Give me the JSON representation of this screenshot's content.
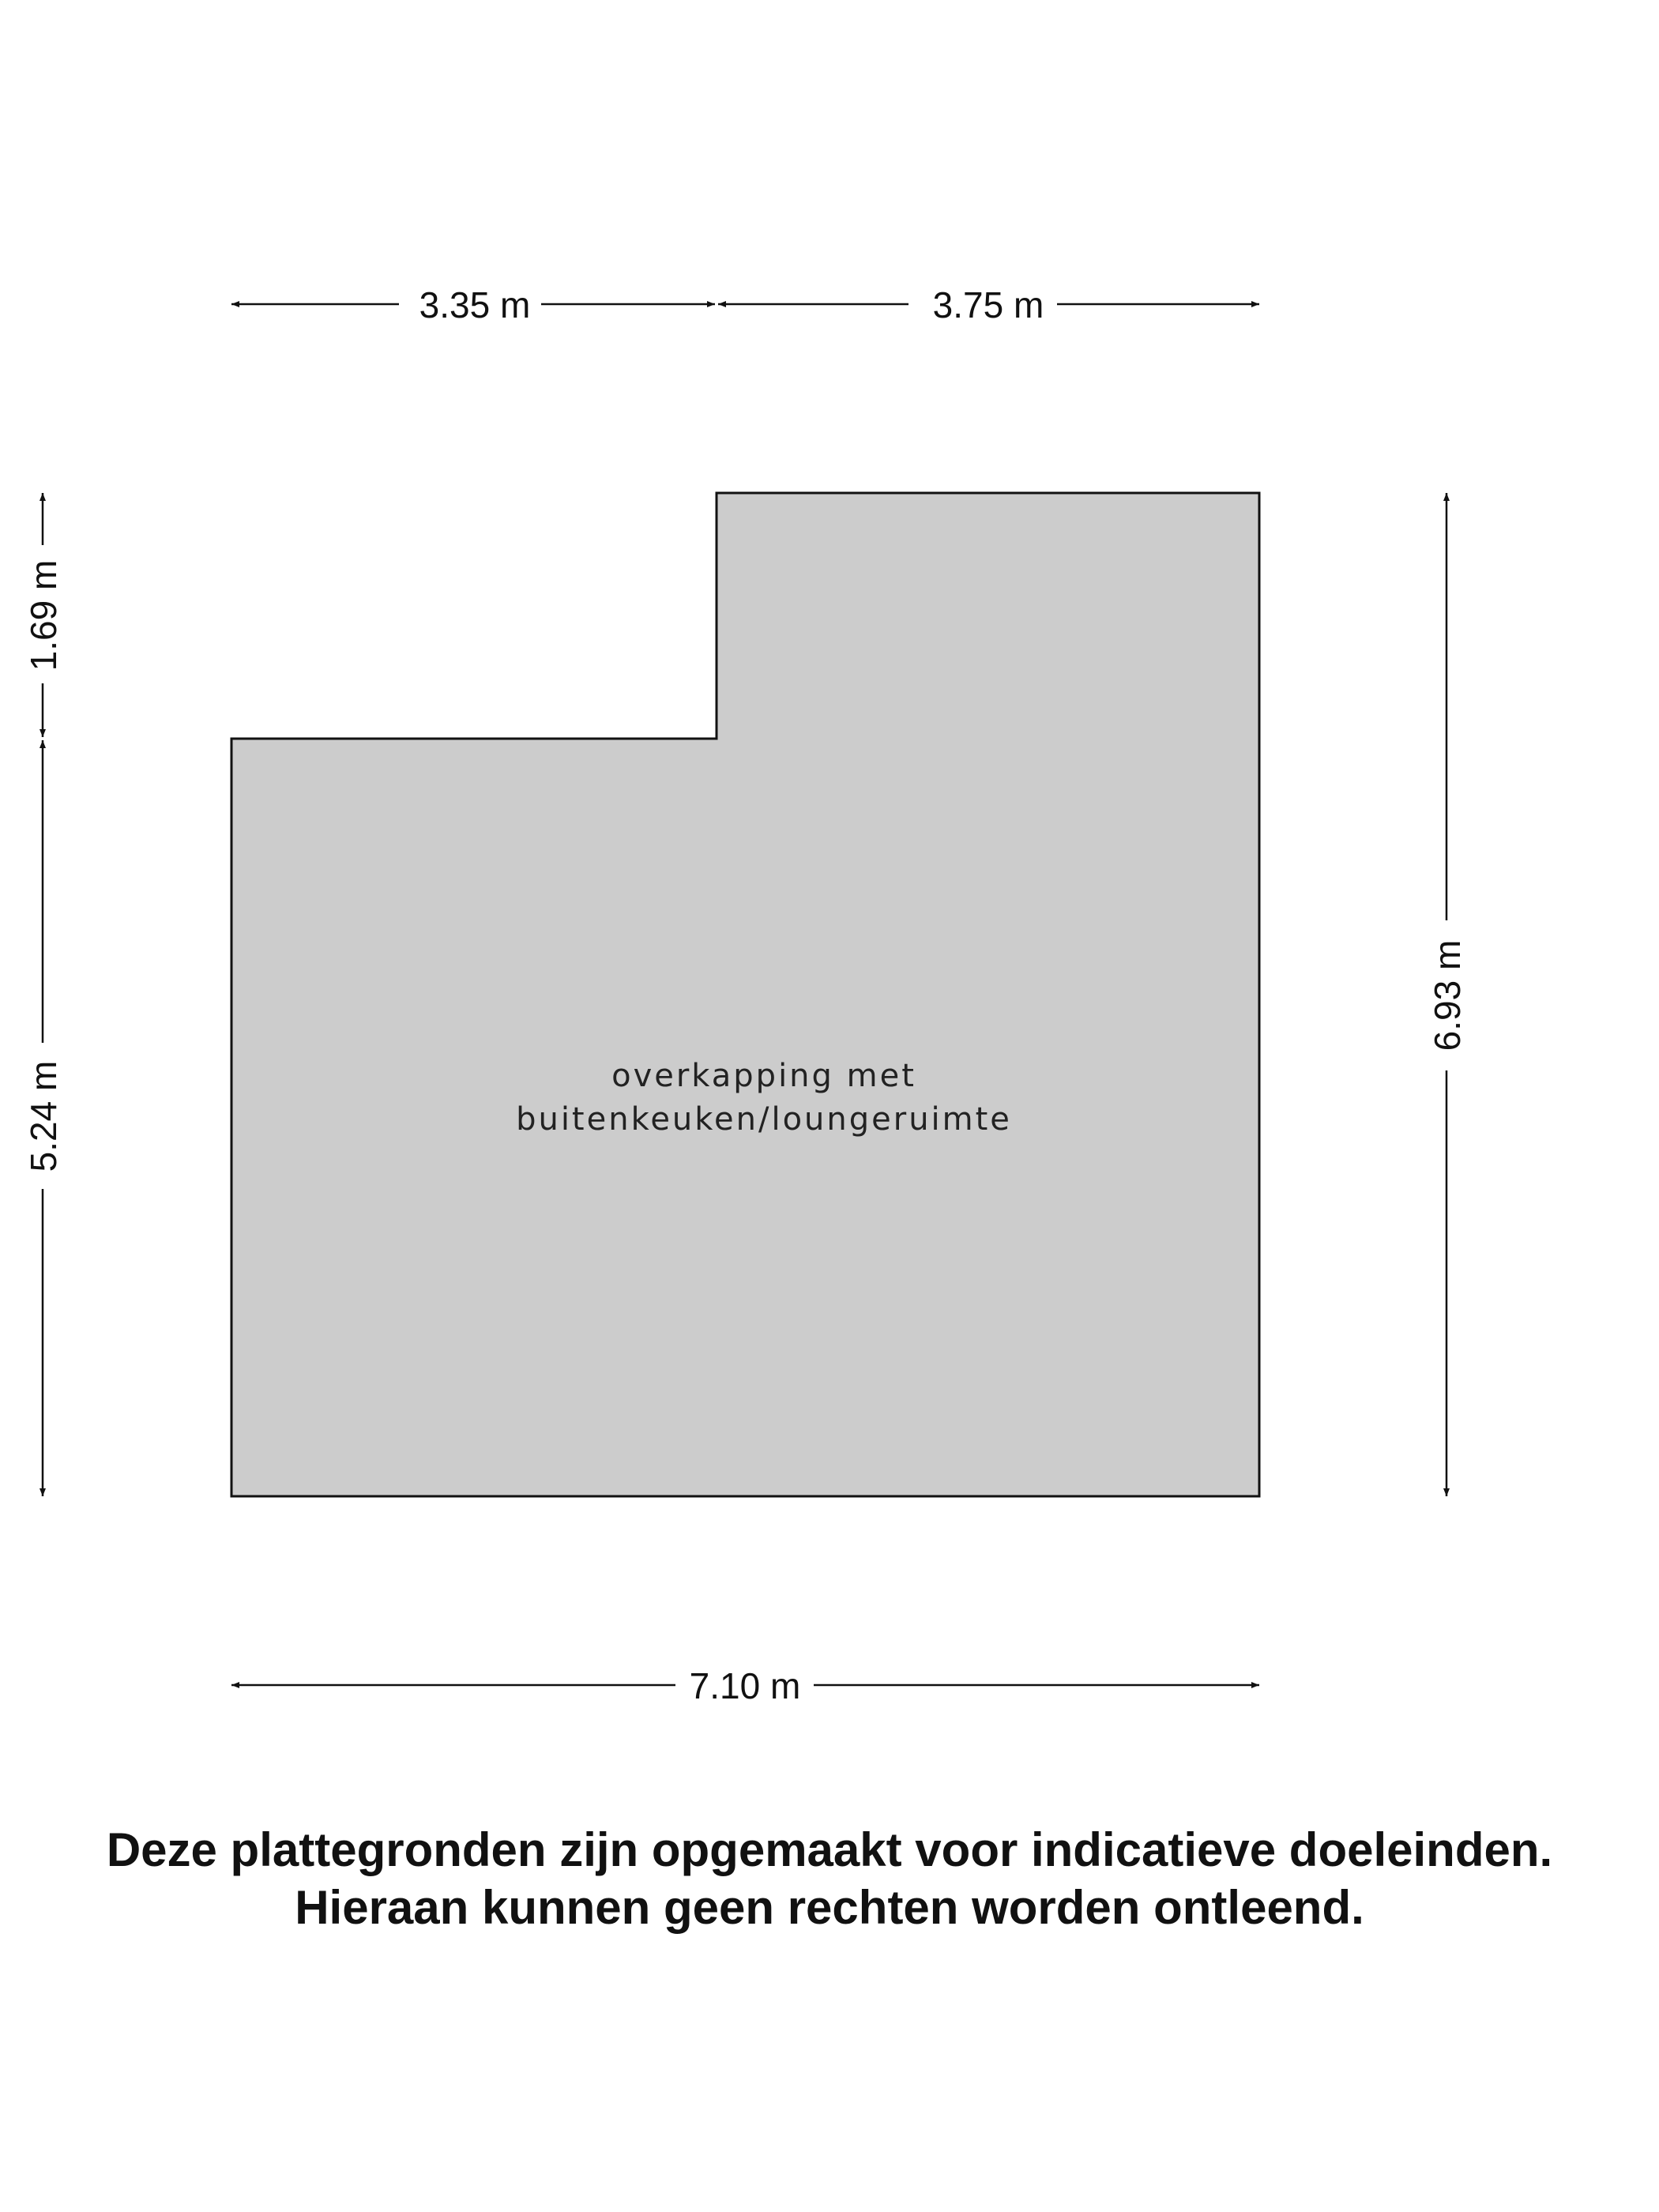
{
  "floorplan": {
    "room_label_line1": "overkapping met",
    "room_label_line2": "buitenkeuken/loungeruimte",
    "fill_color": "#cccccc",
    "dimensions": {
      "top_left": "3.35 m",
      "top_right": "3.75 m",
      "left_upper": "1.69 m",
      "left_lower": "5.24 m",
      "right": "6.93 m",
      "bottom": "7.10 m"
    }
  },
  "disclaimer": {
    "line1": "Deze plattegronden zijn opgemaakt voor indicatieve doeleinden.",
    "line2": "Hieraan kunnen geen rechten worden ontleend."
  }
}
